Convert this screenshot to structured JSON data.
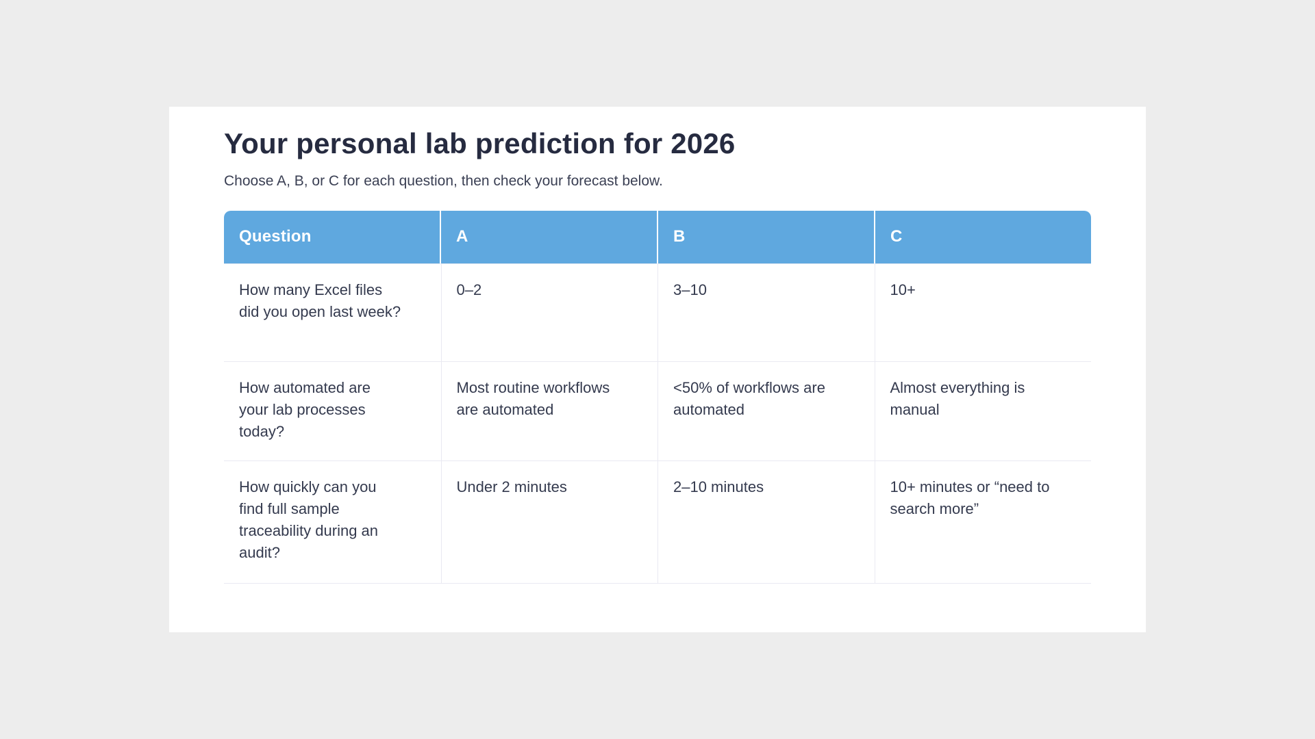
{
  "header": {
    "title": "Your personal lab prediction for 2026",
    "subtitle": "Choose A, B, or C for each question, then check your forecast below."
  },
  "table": {
    "columns": [
      "Question",
      "A",
      "B",
      "C"
    ],
    "rows": [
      {
        "question": "How many Excel files did you open last week?",
        "a": "0–2",
        "b": "3–10",
        "c": "10+"
      },
      {
        "question": "How automated are your lab processes today?",
        "a": "Most routine workflows are automated",
        "b": "<50% of workflows are automated",
        "c": "Almost everything is manual"
      },
      {
        "question": "How quickly can you find full sample traceability during an audit?",
        "a": "Under 2 minutes",
        "b": "2–10 minutes",
        "c": "10+ minutes or “need to search more”"
      }
    ]
  },
  "colors": {
    "page_background": "#ededed",
    "card_background": "#ffffff",
    "header_fill": "#5fa8df",
    "header_text": "#ffffff",
    "title_text": "#262b40",
    "body_text": "#343a4e",
    "divider": "#e9e9f2"
  }
}
